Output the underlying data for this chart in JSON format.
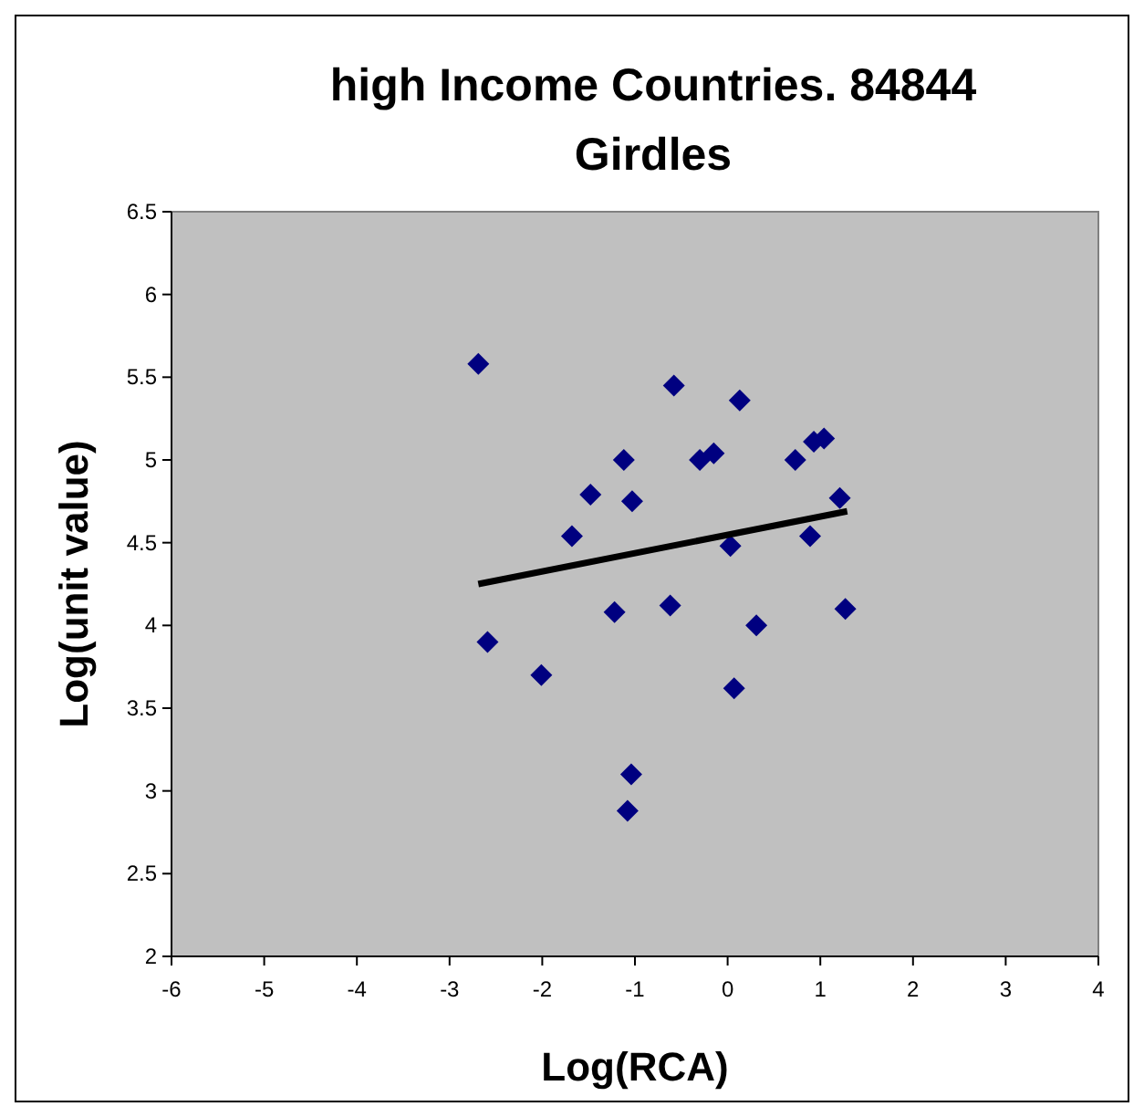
{
  "chart_data": {
    "type": "scatter",
    "title": "high Income Countries. 84844\nGirdles",
    "xlabel": "Log(RCA)",
    "ylabel": "Log(unit value)",
    "xlim": [
      -6,
      4
    ],
    "xticks": [
      -6,
      -5,
      -4,
      -3,
      -2,
      -1,
      0,
      1,
      2,
      3,
      4
    ],
    "ylim": [
      2,
      6.5
    ],
    "yticks": [
      2,
      2.5,
      3,
      3.5,
      4,
      4.5,
      5,
      5.5,
      6,
      6.5
    ],
    "series": [
      {
        "color": "#000080",
        "marker": "diamond",
        "x": [
          -2.69,
          -2.59,
          -2.01,
          -1.68,
          -1.48,
          -1.22,
          -1.12,
          -1.03,
          -1.04,
          -1.08,
          -0.62,
          -0.58,
          -0.3,
          -0.15,
          0.03,
          0.07,
          0.13,
          0.31,
          0.73,
          0.89,
          0.93,
          1.04,
          1.21,
          1.27
        ],
        "values": [
          5.58,
          3.9,
          3.7,
          4.54,
          4.79,
          4.08,
          5.0,
          4.75,
          3.1,
          2.88,
          4.12,
          5.45,
          5.0,
          5.04,
          4.48,
          3.62,
          5.36,
          4.0,
          5.0,
          4.54,
          5.11,
          5.13,
          4.77,
          4.1
        ]
      },
      {
        "type": "line",
        "color": "#000000",
        "x": [
          -2.69,
          1.29
        ],
        "values": [
          4.25,
          4.69
        ]
      }
    ]
  }
}
